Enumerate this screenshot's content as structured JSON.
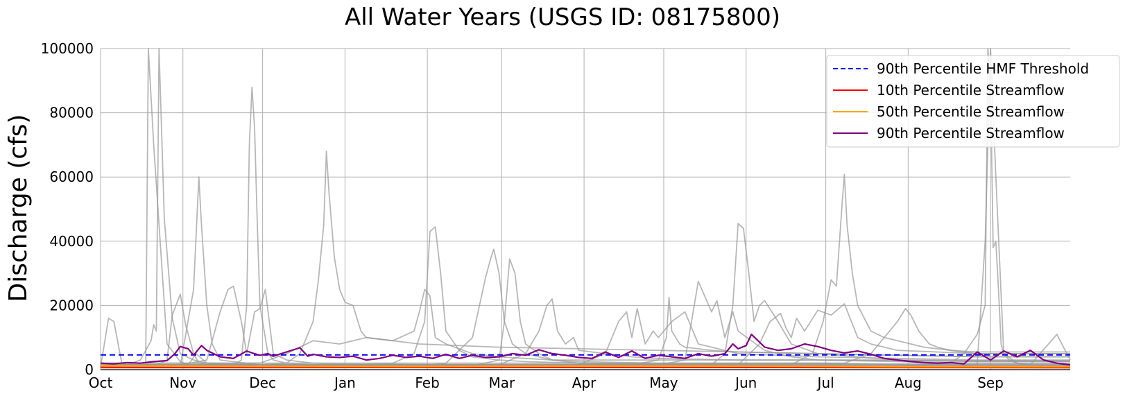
{
  "chart_data": {
    "type": "line",
    "title": "All Water Years (USGS ID: 08175800)",
    "xlabel": "",
    "ylabel": "Discharge (cfs)",
    "ylim": [
      0,
      100000
    ],
    "xlim_days": [
      0,
      365
    ],
    "yticks": [
      0,
      20000,
      40000,
      60000,
      80000,
      100000
    ],
    "xticks": [
      {
        "label": "Oct",
        "day": 0
      },
      {
        "label": "Nov",
        "day": 31
      },
      {
        "label": "Dec",
        "day": 61
      },
      {
        "label": "Jan",
        "day": 92
      },
      {
        "label": "Feb",
        "day": 123
      },
      {
        "label": "Mar",
        "day": 151
      },
      {
        "label": "Apr",
        "day": 182
      },
      {
        "label": "May",
        "day": 212
      },
      {
        "label": "Jun",
        "day": 243
      },
      {
        "label": "Jul",
        "day": 273
      },
      {
        "label": "Aug",
        "day": 304
      },
      {
        "label": "Sep",
        "day": 335
      }
    ],
    "grid": true,
    "legend_position": "top-right",
    "legend": [
      {
        "key": "hmf",
        "label": "90th Percentile HMF Threshold",
        "color": "#0000ff",
        "style": "dashed"
      },
      {
        "key": "p10",
        "label": "10th Percentile Streamflow",
        "color": "#ff0000",
        "style": "solid"
      },
      {
        "key": "p50",
        "label": "50th Percentile Streamflow",
        "color": "#ffa500",
        "style": "solid"
      },
      {
        "key": "p90",
        "label": "90th Percentile Streamflow",
        "color": "#800080",
        "style": "solid"
      }
    ],
    "threshold": {
      "name": "90th Percentile HMF Threshold",
      "value": 4600
    },
    "percentiles": {
      "p10": {
        "name": "10th Percentile Streamflow",
        "x": [
          0,
          60,
          120,
          180,
          240,
          300,
          365
        ],
        "values": [
          650,
          650,
          700,
          700,
          700,
          650,
          600
        ]
      },
      "p50": {
        "name": "50th Percentile Streamflow",
        "x": [
          0,
          60,
          120,
          180,
          240,
          300,
          365
        ],
        "values": [
          1200,
          1000,
          1000,
          1100,
          1100,
          900,
          900
        ]
      },
      "p90": {
        "name": "90th Percentile Streamflow",
        "x": [
          0,
          5,
          10,
          15,
          20,
          25,
          28,
          30,
          33,
          35,
          38,
          40,
          45,
          50,
          55,
          57,
          60,
          63,
          65,
          70,
          75,
          78,
          80,
          85,
          90,
          95,
          100,
          105,
          110,
          115,
          120,
          125,
          130,
          135,
          140,
          145,
          150,
          155,
          160,
          165,
          170,
          175,
          180,
          185,
          190,
          195,
          200,
          205,
          210,
          215,
          220,
          225,
          230,
          235,
          238,
          240,
          243,
          245,
          250,
          255,
          260,
          265,
          270,
          275,
          280,
          285,
          290,
          295,
          300,
          305,
          310,
          315,
          320,
          325,
          330,
          335,
          340,
          345,
          350,
          355,
          360,
          365
        ],
        "values": [
          2000,
          1800,
          2200,
          2000,
          2500,
          2800,
          5000,
          7200,
          6500,
          4500,
          7500,
          6000,
          4000,
          3500,
          5800,
          5200,
          4500,
          5000,
          4200,
          5500,
          6800,
          4200,
          4800,
          4000,
          3800,
          4200,
          3000,
          3500,
          4500,
          3800,
          4200,
          3500,
          4800,
          3500,
          4500,
          3800,
          4000,
          5000,
          4500,
          6200,
          5000,
          4500,
          3800,
          3500,
          5500,
          3800,
          5800,
          3500,
          4500,
          4000,
          3500,
          5000,
          4200,
          5000,
          8000,
          6500,
          7500,
          11000,
          7000,
          6000,
          6500,
          8000,
          7200,
          6000,
          5200,
          5800,
          4800,
          3500,
          3000,
          2500,
          2200,
          2000,
          2200,
          1800,
          5500,
          3000,
          5800,
          4000,
          6000,
          3000,
          2000,
          1500
        ]
      }
    },
    "years": [
      {
        "x": [
          0,
          3,
          5,
          8,
          12,
          17,
          18,
          20,
          25,
          30,
          33,
          36,
          40,
          50,
          60,
          70,
          80,
          90,
          120,
          150,
          180,
          210,
          240,
          270,
          300,
          330,
          365
        ],
        "values": [
          800,
          16000,
          15000,
          2000,
          1000,
          1500,
          100000,
          70000,
          8000,
          2500,
          1500,
          5000,
          2000,
          1200,
          1000,
          900,
          800,
          800,
          700,
          700,
          700,
          700,
          700,
          700,
          700,
          600,
          600
        ]
      },
      {
        "x": [
          0,
          10,
          15,
          19,
          20,
          21,
          22,
          24,
          27,
          30,
          35,
          40,
          60,
          90,
          120,
          150,
          180,
          210,
          240,
          270,
          300,
          330,
          365
        ],
        "values": [
          1200,
          1500,
          3000,
          9000,
          14000,
          12000,
          100000,
          47000,
          16000,
          5000,
          3000,
          2000,
          1500,
          1200,
          1200,
          1200,
          1200,
          1200,
          1200,
          1200,
          1000,
          900,
          900
        ]
      },
      {
        "x": [
          0,
          20,
          25,
          27,
          30,
          32,
          35,
          37,
          40,
          45,
          60,
          90,
          120,
          150,
          180,
          210,
          240,
          270,
          300,
          330,
          365
        ],
        "values": [
          1000,
          1000,
          3000,
          17000,
          23500,
          14000,
          5000,
          2000,
          1500,
          1200,
          1000,
          900,
          900,
          900,
          900,
          900,
          900,
          900,
          800,
          800,
          800
        ]
      },
      {
        "x": [
          0,
          30,
          35,
          37,
          38,
          40,
          42,
          45,
          60,
          90,
          120,
          150,
          180,
          210,
          240,
          270,
          300,
          330,
          365
        ],
        "values": [
          1000,
          1200,
          25000,
          60000,
          45000,
          20000,
          8000,
          3000,
          1500,
          1200,
          1100,
          1100,
          1100,
          1100,
          1100,
          1100,
          1000,
          1000,
          1000
        ]
      },
      {
        "x": [
          0,
          30,
          40,
          45,
          48,
          50,
          53,
          55,
          58,
          60,
          62,
          65,
          70,
          80,
          90,
          120,
          150,
          180,
          210,
          240,
          270,
          300,
          330,
          365
        ],
        "values": [
          1500,
          1500,
          3000,
          18000,
          25000,
          26000,
          15000,
          5000,
          18000,
          19000,
          25000,
          5000,
          3000,
          2000,
          1800,
          1600,
          1600,
          1600,
          1600,
          1600,
          1600,
          1500,
          1400,
          1400
        ]
      },
      {
        "x": [
          0,
          40,
          50,
          53,
          55,
          56,
          57,
          58,
          59,
          60,
          63,
          65,
          70,
          80,
          90,
          120,
          150,
          180,
          210,
          240,
          270,
          300,
          330,
          365
        ],
        "values": [
          1200,
          1200,
          1500,
          3000,
          20000,
          70000,
          88000,
          75000,
          45000,
          20000,
          5000,
          3000,
          2000,
          1500,
          1300,
          1200,
          1200,
          1200,
          1200,
          1200,
          1200,
          1100,
          1000,
          1000
        ]
      },
      {
        "x": [
          0,
          60,
          70,
          75,
          80,
          82,
          84,
          85,
          86,
          88,
          90,
          92,
          95,
          98,
          100,
          110,
          120,
          150,
          180,
          210,
          240,
          270,
          300,
          330,
          365
        ],
        "values": [
          1500,
          1500,
          2000,
          5000,
          15000,
          28000,
          45000,
          68000,
          55000,
          35000,
          25000,
          21000,
          20000,
          12000,
          10000,
          9000,
          8000,
          7000,
          6500,
          6000,
          5500,
          5000,
          4500,
          4000,
          4000
        ]
      },
      {
        "x": [
          0,
          60,
          70,
          80,
          90,
          100,
          110,
          118,
          120,
          122,
          124,
          126,
          130,
          140,
          150,
          160,
          170,
          180,
          210,
          240,
          270,
          300,
          330,
          365
        ],
        "values": [
          2000,
          2000,
          5000,
          9000,
          8000,
          10000,
          9000,
          12000,
          18000,
          25000,
          23000,
          10000,
          8000,
          5000,
          4000,
          3500,
          3000,
          3000,
          3000,
          3000,
          3000,
          3000,
          2800,
          2800
        ]
      },
      {
        "x": [
          0,
          90,
          110,
          118,
          122,
          124,
          126,
          128,
          130,
          135,
          140,
          150,
          160,
          180,
          210,
          240,
          270,
          300,
          330,
          365
        ],
        "values": [
          1000,
          1000,
          2000,
          5000,
          15000,
          43000,
          44500,
          30000,
          12000,
          6000,
          4000,
          3000,
          2500,
          2000,
          1800,
          1800,
          1800,
          1600,
          1500,
          1500
        ]
      },
      {
        "x": [
          0,
          120,
          130,
          140,
          145,
          147,
          148,
          150,
          152,
          155,
          160,
          170,
          180,
          210,
          240,
          270,
          300,
          330,
          365
        ],
        "values": [
          1000,
          1000,
          2000,
          10000,
          29000,
          35000,
          37500,
          30000,
          15000,
          8000,
          5000,
          3000,
          2000,
          1500,
          1500,
          1500,
          1400,
          1300,
          1300
        ]
      },
      {
        "x": [
          0,
          140,
          150,
          152,
          154,
          156,
          158,
          160,
          165,
          170,
          180,
          210,
          240,
          270,
          300,
          330,
          365
        ],
        "values": [
          1200,
          1200,
          3000,
          15000,
          34500,
          30000,
          15000,
          8000,
          5000,
          3000,
          2500,
          2000,
          2000,
          2000,
          1800,
          1700,
          1700
        ]
      },
      {
        "x": [
          0,
          150,
          160,
          165,
          168,
          170,
          172,
          175,
          178,
          180,
          190,
          200,
          210,
          240,
          270,
          300,
          330,
          365
        ],
        "values": [
          1500,
          1500,
          5000,
          12000,
          20000,
          22000,
          12000,
          8000,
          10000,
          6000,
          5000,
          4000,
          3500,
          3000,
          3000,
          2800,
          2600,
          2600
        ]
      },
      {
        "x": [
          0,
          180,
          190,
          195,
          198,
          200,
          202,
          205,
          208,
          210,
          215,
          220,
          225,
          240,
          270,
          300,
          330,
          365
        ],
        "values": [
          1500,
          1500,
          5000,
          15000,
          18000,
          10000,
          19000,
          8000,
          12000,
          10000,
          15000,
          18000,
          8000,
          5000,
          4000,
          3500,
          3000,
          3000
        ]
      },
      {
        "x": [
          0,
          200,
          210,
          213,
          214,
          215,
          218,
          220,
          230,
          240,
          270,
          300,
          330,
          365
        ],
        "values": [
          1500,
          1500,
          3000,
          10000,
          22500,
          12000,
          8000,
          7000,
          6000,
          5500,
          5000,
          4500,
          4000,
          4000
        ]
      },
      {
        "x": [
          0,
          210,
          220,
          225,
          230,
          232,
          235,
          238,
          240,
          245,
          250,
          260,
          270,
          300,
          330,
          365
        ],
        "values": [
          1500,
          1500,
          3000,
          27500,
          18000,
          21500,
          10000,
          18000,
          12000,
          9000,
          6000,
          4000,
          3000,
          2500,
          2000,
          2000
        ]
      },
      {
        "x": [
          0,
          230,
          235,
          238,
          240,
          242,
          244,
          246,
          248,
          250,
          255,
          260,
          270,
          300,
          330,
          365
        ],
        "values": [
          1500,
          1500,
          5000,
          20000,
          45500,
          44000,
          30000,
          15000,
          20000,
          21500,
          15000,
          8000,
          5000,
          3000,
          2500,
          2500
        ]
      },
      {
        "x": [
          0,
          240,
          248,
          252,
          256,
          258,
          260,
          262,
          265,
          270,
          275,
          280,
          285,
          290,
          300,
          330,
          365
        ],
        "values": [
          1500,
          1500,
          8000,
          15000,
          17500,
          13000,
          10000,
          16000,
          12000,
          18500,
          17000,
          20500,
          10000,
          8000,
          6000,
          5000,
          5000
        ]
      },
      {
        "x": [
          0,
          260,
          268,
          272,
          275,
          277,
          279,
          280,
          281,
          283,
          285,
          290,
          295,
          300,
          310,
          320,
          330,
          365
        ],
        "values": [
          1500,
          1500,
          5000,
          15000,
          28000,
          26000,
          50000,
          60800,
          45000,
          30000,
          20000,
          12000,
          10000,
          9000,
          7000,
          6000,
          5500,
          5500
        ]
      },
      {
        "x": [
          0,
          280,
          290,
          295,
          300,
          303,
          305,
          308,
          312,
          315,
          320,
          330,
          365
        ],
        "values": [
          2000,
          2000,
          5000,
          10000,
          15000,
          19000,
          17000,
          12000,
          8000,
          7000,
          6000,
          5000,
          5000
        ]
      },
      {
        "x": [
          0,
          300,
          320,
          325,
          330,
          333,
          334,
          335,
          336,
          337,
          338,
          339,
          340,
          342,
          345,
          350,
          360,
          365
        ],
        "values": [
          1000,
          1000,
          2000,
          5000,
          11000,
          20000,
          100000,
          90000,
          38000,
          40000,
          25000,
          8000,
          5000,
          3000,
          2000,
          1500,
          11000,
          3000
        ]
      },
      {
        "x": [
          0,
          320,
          330,
          333,
          335,
          337,
          340,
          345,
          350,
          355,
          360,
          365
        ],
        "values": [
          800,
          800,
          1500,
          40000,
          100000,
          60000,
          5000,
          2000,
          1500,
          1200,
          1000,
          1000
        ]
      }
    ]
  }
}
